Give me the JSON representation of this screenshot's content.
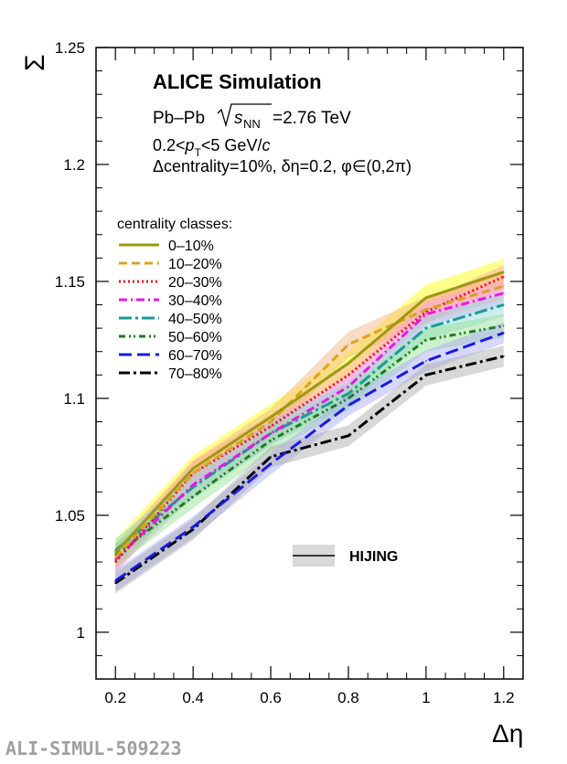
{
  "chart_data": {
    "type": "line",
    "title": "ALICE Simulation",
    "annotations": {
      "system": "Pb–Pb",
      "energy_label": "=2.76 TeV",
      "pt_range": "0.2<pT<5 GeV/c",
      "selection": "Δcentrality=10%, δη=0.2, φ∈(0,2π)"
    },
    "xlabel": "Δη",
    "ylabel": "Σ",
    "xlim": [
      0.15,
      1.25
    ],
    "ylim": [
      0.98,
      1.25
    ],
    "x_ticks": [
      "0.2",
      "0.4",
      "0.6",
      "0.8",
      "1",
      "1.2"
    ],
    "y_ticks": [
      "1",
      "1.05",
      "1.1",
      "1.15",
      "1.2",
      "1.25"
    ],
    "legend_title": "centrality classes:",
    "legend_placement": "left",
    "model_legend": "HIJING",
    "x": [
      0.2,
      0.4,
      0.6,
      0.8,
      1.0,
      1.2
    ],
    "series": [
      {
        "name": "0–10%",
        "color": "#9a9a14",
        "dash": "solid",
        "values": [
          1.034,
          1.07,
          1.092,
          1.115,
          1.143,
          1.154
        ],
        "band_half": 0.0055,
        "band_color": "#ffff00"
      },
      {
        "name": "10–20%",
        "color": "#d9a41a",
        "dash": "dash",
        "values": [
          1.032,
          1.068,
          1.09,
          1.123,
          1.138,
          1.148
        ],
        "band_half": 0.0055,
        "band_color": "#f2b27a"
      },
      {
        "name": "20–30%",
        "color": "#e8102a",
        "dash": "dot",
        "values": [
          1.03,
          1.068,
          1.088,
          1.11,
          1.137,
          1.152
        ],
        "band_half": 0.005,
        "band_color": "#ff9fa4"
      },
      {
        "name": "30–40%",
        "color": "#e617e6",
        "dash": "dashdot",
        "values": [
          1.031,
          1.063,
          1.085,
          1.105,
          1.136,
          1.145
        ],
        "band_half": 0.005,
        "band_color": "#f5a3f5"
      },
      {
        "name": "40–50%",
        "color": "#1a9a9a",
        "dash": "longdashdot",
        "values": [
          1.035,
          1.062,
          1.085,
          1.102,
          1.13,
          1.14
        ],
        "band_half": 0.005,
        "band_color": "#8ad6d6"
      },
      {
        "name": "50–60%",
        "color": "#1f7a1f",
        "dash": "dashdotdot",
        "values": [
          1.033,
          1.058,
          1.082,
          1.1,
          1.125,
          1.131
        ],
        "band_half": 0.005,
        "band_color": "#8fe08f"
      },
      {
        "name": "60–70%",
        "color": "#1a1ae0",
        "dash": "longdash",
        "values": [
          1.022,
          1.045,
          1.072,
          1.097,
          1.116,
          1.128
        ],
        "band_half": 0.0045,
        "band_color": "#a6a6f5"
      },
      {
        "name": "70–80%",
        "color": "#000000",
        "dash": "dashdotlong",
        "values": [
          1.021,
          1.044,
          1.075,
          1.084,
          1.11,
          1.118
        ],
        "band_half": 0.0045,
        "band_color": "#a8a8a8"
      }
    ]
  },
  "footer": {
    "figure_id": "ALI-SIMUL-509223"
  }
}
